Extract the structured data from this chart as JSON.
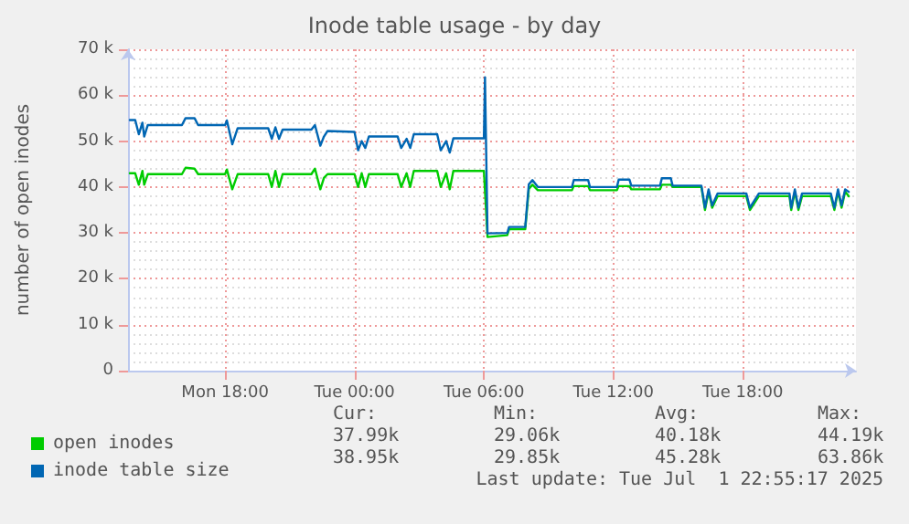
{
  "chart_data": {
    "type": "line",
    "title": "Inode table usage - by day",
    "ylabel": "number of open inodes",
    "xlim": [
      "2025-06-30T13:30",
      "2025-07-01T23:15"
    ],
    "xticks": [
      {
        "value": "2025-06-30T18:00",
        "label": "Mon 18:00"
      },
      {
        "value": "2025-07-01T00:00",
        "label": "Tue 00:00"
      },
      {
        "value": "2025-07-01T06:00",
        "label": "Tue 06:00"
      },
      {
        "value": "2025-07-01T12:00",
        "label": "Tue 12:00"
      },
      {
        "value": "2025-07-01T18:00",
        "label": "Tue 18:00"
      }
    ],
    "ylim": [
      0,
      70000
    ],
    "yticks": [
      0,
      {
        "value": 10000,
        "label": "10 k"
      },
      {
        "value": 20000,
        "label": "20 k"
      },
      {
        "value": 30000,
        "label": "30 k"
      },
      {
        "value": 40000,
        "label": "40 k"
      },
      {
        "value": 50000,
        "label": "50 k"
      },
      {
        "value": 60000,
        "label": "60 k"
      },
      {
        "value": 70000,
        "label": "70 k"
      }
    ],
    "grid": true,
    "legend": "bottom",
    "marker": "none",
    "line_style": "solid",
    "x": [
      "2025-06-30T13:35",
      "2025-06-30T13:50",
      "2025-06-30T14:00",
      "2025-06-30T14:10",
      "2025-06-30T14:15",
      "2025-06-30T14:25",
      "2025-06-30T16:00",
      "2025-06-30T16:10",
      "2025-06-30T16:35",
      "2025-06-30T16:45",
      "2025-06-30T18:00",
      "2025-06-30T18:05",
      "2025-06-30T18:20",
      "2025-06-30T18:35",
      "2025-06-30T20:00",
      "2025-06-30T20:10",
      "2025-06-30T20:20",
      "2025-06-30T20:30",
      "2025-06-30T20:40",
      "2025-06-30T22:00",
      "2025-06-30T22:10",
      "2025-06-30T22:25",
      "2025-06-30T22:35",
      "2025-06-30T22:45",
      "2025-07-01T00:00",
      "2025-07-01T00:10",
      "2025-07-01T00:20",
      "2025-07-01T00:30",
      "2025-07-01T00:40",
      "2025-07-01T02:00",
      "2025-07-01T02:10",
      "2025-07-01T02:25",
      "2025-07-01T02:35",
      "2025-07-01T02:45",
      "2025-07-01T03:50",
      "2025-07-01T04:00",
      "2025-07-01T04:15",
      "2025-07-01T04:25",
      "2025-07-01T04:35",
      "2025-07-01T06:00",
      "2025-07-01T06:03",
      "2025-07-01T06:10",
      "2025-07-01T07:05",
      "2025-07-01T07:10",
      "2025-07-01T07:55",
      "2025-07-01T08:05",
      "2025-07-01T08:15",
      "2025-07-01T08:30",
      "2025-07-01T10:05",
      "2025-07-01T10:10",
      "2025-07-01T10:50",
      "2025-07-01T10:55",
      "2025-07-01T12:10",
      "2025-07-01T12:15",
      "2025-07-01T12:45",
      "2025-07-01T12:50",
      "2025-07-01T14:10",
      "2025-07-01T14:15",
      "2025-07-01T14:40",
      "2025-07-01T14:45",
      "2025-07-01T16:05",
      "2025-07-01T16:15",
      "2025-07-01T16:25",
      "2025-07-01T16:35",
      "2025-07-01T16:50",
      "2025-07-01T18:10",
      "2025-07-01T18:20",
      "2025-07-01T18:45",
      "2025-07-01T20:10",
      "2025-07-01T20:15",
      "2025-07-01T20:25",
      "2025-07-01T20:35",
      "2025-07-01T20:45",
      "2025-07-01T21:00",
      "2025-07-01T22:05",
      "2025-07-01T22:15",
      "2025-07-01T22:25",
      "2025-07-01T22:35",
      "2025-07-01T22:45",
      "2025-07-01T22:55"
    ],
    "series": [
      {
        "name": "open inodes",
        "color": "#00cc00",
        "values": [
          43000,
          43000,
          40500,
          43500,
          40500,
          42800,
          42800,
          44200,
          44000,
          42800,
          42800,
          43800,
          39500,
          42800,
          42800,
          40000,
          43500,
          40000,
          42800,
          42800,
          44000,
          39500,
          42000,
          42800,
          42800,
          40000,
          43000,
          40000,
          42800,
          42800,
          40000,
          43000,
          40000,
          43500,
          43500,
          40000,
          43000,
          39500,
          43500,
          43500,
          43500,
          29100,
          29500,
          30800,
          30800,
          39600,
          40500,
          39300,
          39300,
          40200,
          40200,
          39300,
          39300,
          40200,
          40200,
          39500,
          39500,
          40500,
          40500,
          40000,
          40000,
          35000,
          39000,
          35500,
          38000,
          38000,
          35000,
          38000,
          38000,
          35000,
          39000,
          35000,
          38000,
          38000,
          38000,
          35000,
          39000,
          35500,
          39000,
          37990
        ]
      },
      {
        "name": "inode table size",
        "color": "#0066b3",
        "values": [
          54600,
          54600,
          51500,
          54000,
          51000,
          53500,
          53500,
          55000,
          55000,
          53500,
          53500,
          54500,
          49300,
          52800,
          52800,
          50500,
          53000,
          50500,
          52500,
          52500,
          53500,
          49000,
          51000,
          52200,
          52000,
          48000,
          50000,
          48500,
          51000,
          51000,
          48500,
          50500,
          48500,
          51500,
          51500,
          48000,
          50000,
          47500,
          50600,
          50600,
          63900,
          29900,
          30000,
          31300,
          31300,
          40600,
          41500,
          40000,
          40000,
          41500,
          41500,
          40000,
          40000,
          41600,
          41600,
          40300,
          40300,
          41900,
          41900,
          40300,
          40300,
          35500,
          39500,
          36000,
          38600,
          38600,
          35500,
          38600,
          38600,
          35500,
          39500,
          35500,
          38600,
          38600,
          38600,
          35500,
          39500,
          36000,
          39500,
          38950
        ]
      }
    ],
    "annotations": [
      "Cur:",
      "Min:",
      "Avg:",
      "Max:",
      "37.99k",
      "29.06k",
      "40.18k",
      "44.19k",
      "38.95k",
      "29.85k",
      "45.28k",
      "63.86k",
      "Last update: Tue Jul  1 22:55:17 2025"
    ]
  }
}
